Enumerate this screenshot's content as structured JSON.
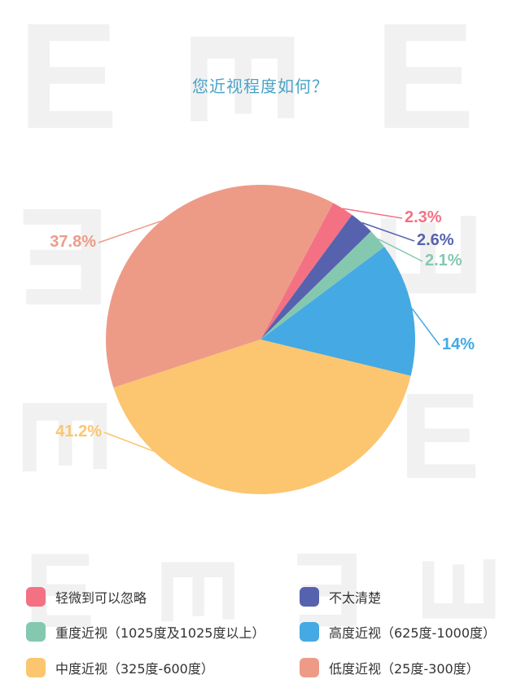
{
  "title": "您近视程度如何？",
  "chart_data": {
    "type": "pie",
    "slices": [
      {
        "legend": "轻微到可以忽略",
        "value": 2.3,
        "label": "2.3%",
        "color": "#f47183"
      },
      {
        "legend": "不太清楚",
        "value": 2.6,
        "label": "2.6%",
        "color": "#5762ae"
      },
      {
        "legend": "重度近视（1025度及1025度以上）",
        "value": 2.1,
        "label": "2.1%",
        "color": "#85c8b0"
      },
      {
        "legend": "高度近视（625度-1000度）",
        "value": 14,
        "label": "14%",
        "color": "#45a9e3"
      },
      {
        "legend": "中度近视（325度-600度）",
        "value": 41.2,
        "label": "41.2%",
        "color": "#fbc66f"
      },
      {
        "legend": "低度近视（25度-300度）",
        "value": 37.8,
        "label": "37.8%",
        "color": "#ed9b87"
      }
    ]
  },
  "legend": [
    {
      "label": "轻微到可以忽略",
      "color": "#f47183"
    },
    {
      "label": "不太清楚",
      "color": "#5762ae"
    },
    {
      "label": "重度近视（1025度及1025度以上）",
      "color": "#85c8b0"
    },
    {
      "label": "高度近视（625度-1000度）",
      "color": "#45a9e3"
    },
    {
      "label": "中度近视（325度-600度）",
      "color": "#fbc66f"
    },
    {
      "label": "低度近视（25度-300度）",
      "color": "#ed9b87"
    }
  ]
}
